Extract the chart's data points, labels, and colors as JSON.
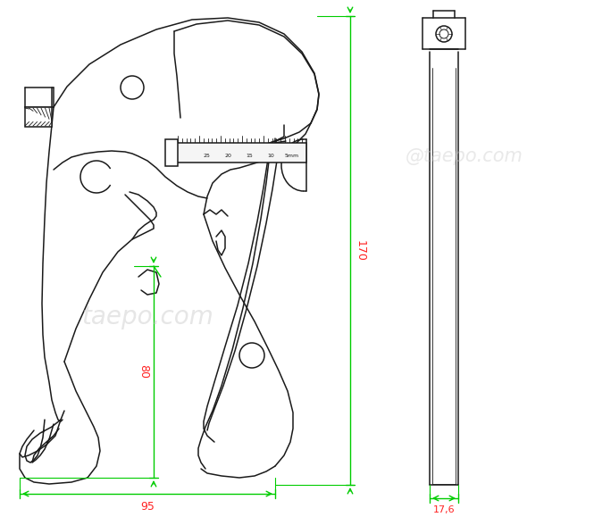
{
  "bg_color": "#ffffff",
  "line_color": "#1a1a1a",
  "dim_color": "#00cc00",
  "dim_text_color": "#ff2222",
  "watermark_color": "#c8c8c8",
  "watermark1": "taepo.com",
  "watermark2": "@taepo.com",
  "dim_170": "170",
  "dim_95": "95",
  "dim_80": "80",
  "dim_17_6": "17,6",
  "fig_width": 6.65,
  "fig_height": 5.79,
  "dpi": 100
}
